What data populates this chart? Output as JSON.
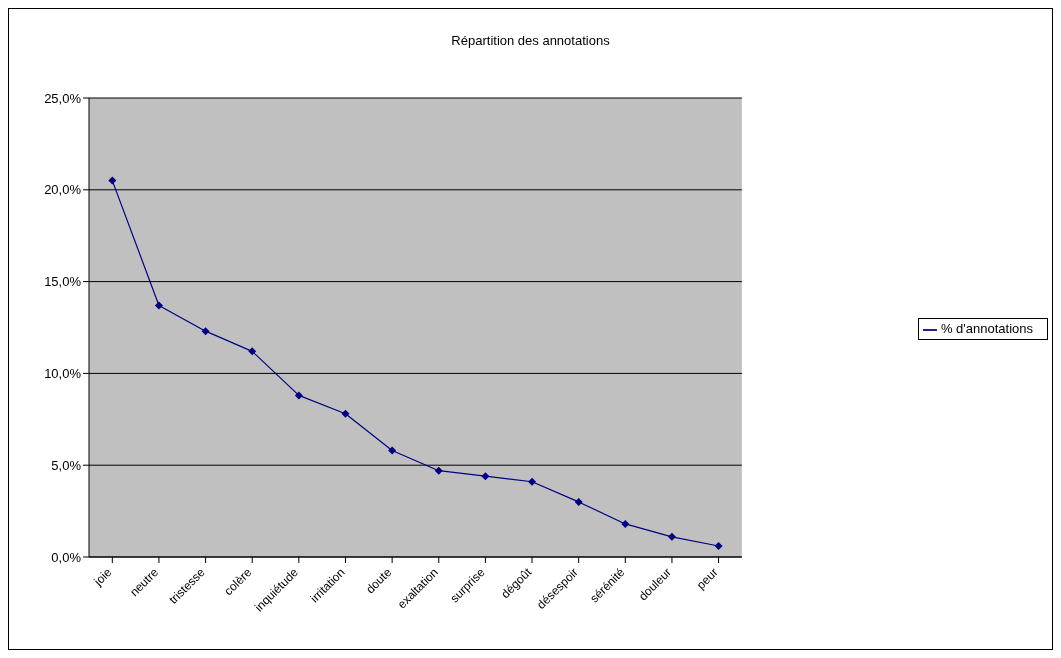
{
  "chart_data": {
    "type": "line",
    "title": "Répartition des annotations",
    "categories": [
      "joie",
      "neutre",
      "tristesse",
      "colère",
      "inquiétude",
      "irritation",
      "doute",
      "exaltation",
      "surprise",
      "dégoût",
      "désespoir",
      "sérénité",
      "douleur",
      "peur"
    ],
    "series": [
      {
        "name": "% d'annotations",
        "color": "#000080",
        "values": [
          20.5,
          13.7,
          12.3,
          11.2,
          8.8,
          7.8,
          5.8,
          4.7,
          4.4,
          4.1,
          3.0,
          1.8,
          1.1,
          0.6
        ]
      }
    ],
    "ylim": [
      0,
      25
    ],
    "yticks": [
      {
        "value": 0,
        "label": "0,0%"
      },
      {
        "value": 5,
        "label": "5,0%"
      },
      {
        "value": 10,
        "label": "10,0%"
      },
      {
        "value": 15,
        "label": "15,0%"
      },
      {
        "value": 20,
        "label": "20,0%"
      },
      {
        "value": 25,
        "label": "25,0%"
      }
    ],
    "grid": "y",
    "legend": "right",
    "marker": "diamond",
    "line_style": "solid"
  }
}
